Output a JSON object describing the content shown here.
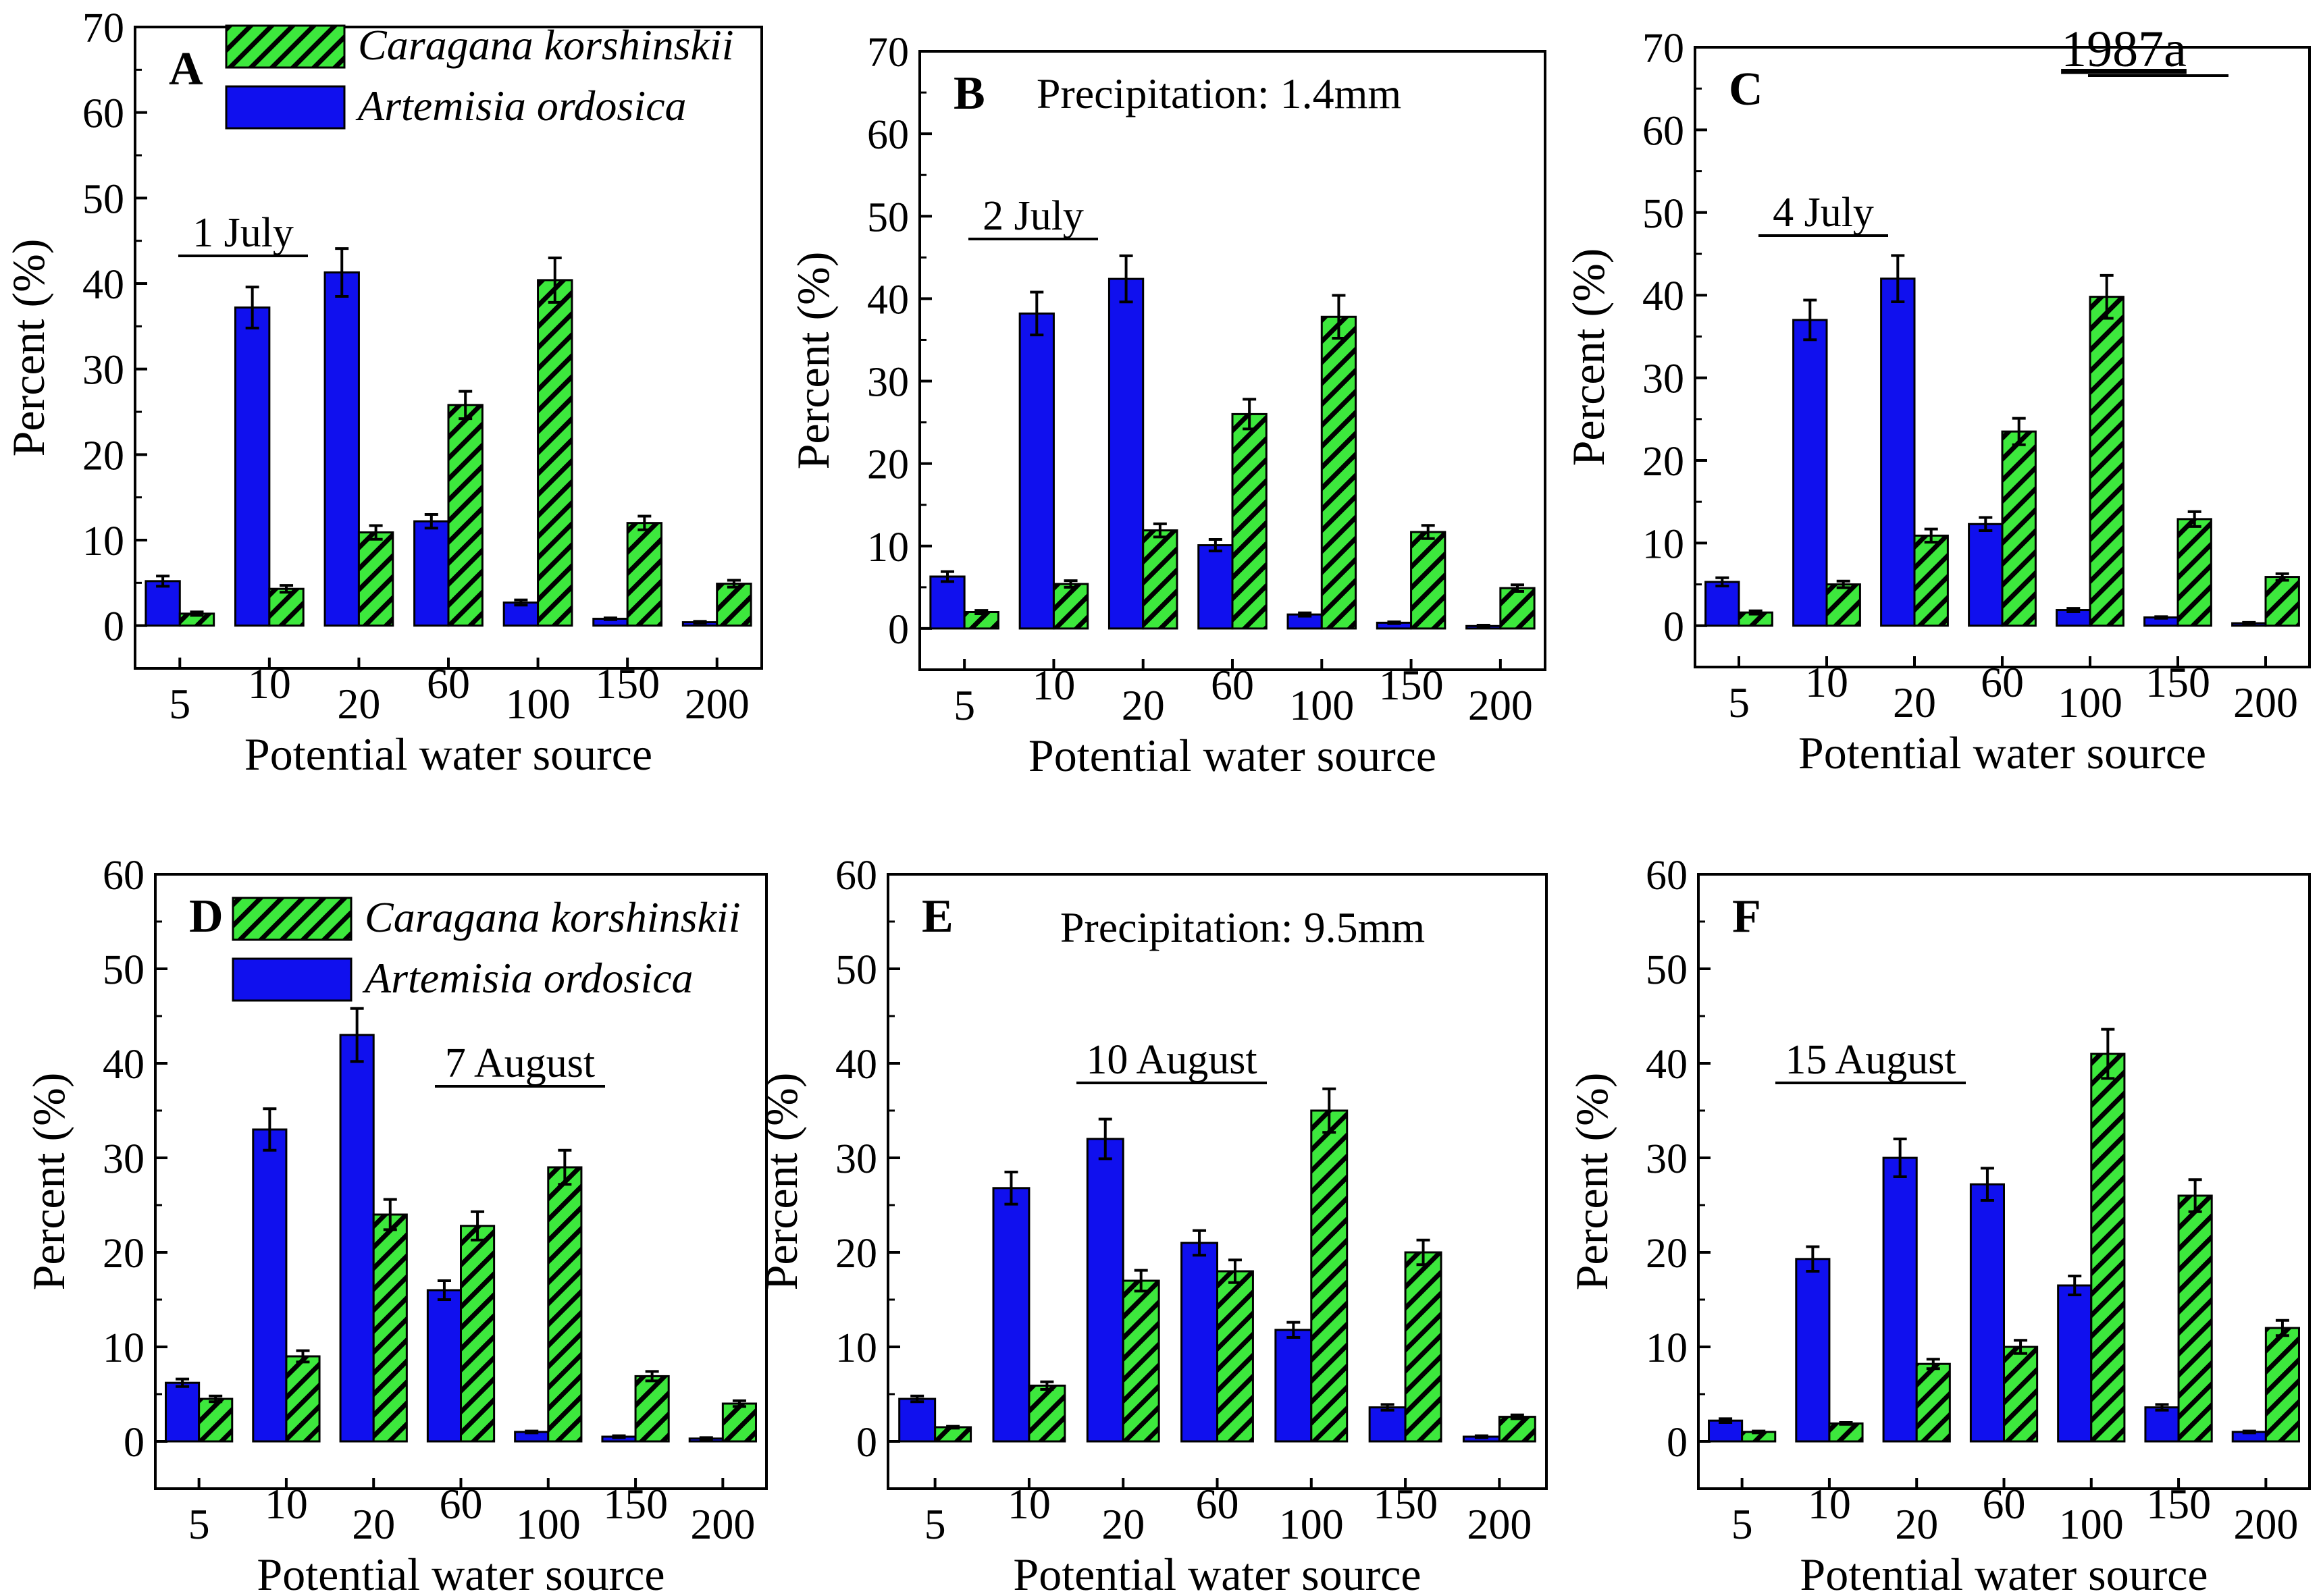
{
  "figure_note": "1987a",
  "legend": {
    "series_a_name": "Caragana korshinskii",
    "series_b_name": "Artemisia ordosica"
  },
  "colors": {
    "caragana": "#3de83d",
    "caragana_hatch": "#000000",
    "artemisia": "#1010ee"
  },
  "chart_data": [
    {
      "type": "bar",
      "panel": "A",
      "date_label": "1 July",
      "annotation": "",
      "xlabel": "Potential water source",
      "ylabel": "Percent (%)",
      "ylim": [
        -5,
        70
      ],
      "yticks": [
        0,
        10,
        20,
        30,
        40,
        50,
        60,
        70
      ],
      "categories": [
        "5",
        "10",
        "20",
        "60",
        "100",
        "150",
        "200"
      ],
      "series": [
        {
          "name": "Artemisia ordosica",
          "values": [
            5.2,
            37.2,
            41.3,
            12.2,
            2.7,
            0.8,
            0.4
          ],
          "errors": [
            0.6,
            2.4,
            2.8,
            0.8,
            0.3,
            0.1,
            0.1
          ]
        },
        {
          "name": "Caragana korshinskii",
          "values": [
            1.4,
            4.3,
            10.9,
            25.8,
            40.4,
            12.0,
            4.9
          ],
          "errors": [
            0.2,
            0.4,
            0.8,
            1.6,
            2.6,
            0.8,
            0.4
          ]
        }
      ]
    },
    {
      "type": "bar",
      "panel": "B",
      "date_label": "2 July",
      "annotation": "Precipitation: 1.4mm",
      "xlabel": "Potential water source",
      "ylabel": "Percent (%)",
      "ylim": [
        -5,
        70
      ],
      "yticks": [
        0,
        10,
        20,
        30,
        40,
        50,
        60,
        70
      ],
      "categories": [
        "5",
        "10",
        "20",
        "60",
        "100",
        "150",
        "200"
      ],
      "series": [
        {
          "name": "Artemisia ordosica",
          "values": [
            6.3,
            38.2,
            42.4,
            10.1,
            1.7,
            0.7,
            0.3
          ],
          "errors": [
            0.6,
            2.6,
            2.8,
            0.7,
            0.2,
            0.1,
            0.1
          ]
        },
        {
          "name": "Caragana korshinskii",
          "values": [
            2.0,
            5.4,
            11.9,
            26.0,
            37.8,
            11.7,
            4.9
          ],
          "errors": [
            0.2,
            0.4,
            0.8,
            1.8,
            2.6,
            0.8,
            0.4
          ]
        }
      ]
    },
    {
      "type": "bar",
      "panel": "C",
      "date_label": "4 July",
      "annotation": "",
      "xlabel": "Potential water source",
      "ylabel": "Percent (%)",
      "ylim": [
        -5,
        70
      ],
      "yticks": [
        0,
        10,
        20,
        30,
        40,
        50,
        60,
        70
      ],
      "categories": [
        "5",
        "10",
        "20",
        "60",
        "100",
        "150",
        "200"
      ],
      "series": [
        {
          "name": "Artemisia ordosica",
          "values": [
            5.3,
            37.0,
            42.0,
            12.3,
            1.9,
            1.0,
            0.3
          ],
          "errors": [
            0.5,
            2.4,
            2.8,
            0.8,
            0.2,
            0.1,
            0.1
          ]
        },
        {
          "name": "Caragana korshinskii",
          "values": [
            1.6,
            5.0,
            10.9,
            23.5,
            39.8,
            12.9,
            5.9
          ],
          "errors": [
            0.2,
            0.4,
            0.8,
            1.6,
            2.6,
            0.9,
            0.4
          ]
        }
      ]
    },
    {
      "type": "bar",
      "panel": "D",
      "date_label": "7 August",
      "annotation": "",
      "xlabel": "Potential water source",
      "ylabel": "Percent (%)",
      "ylim": [
        -5,
        60
      ],
      "yticks": [
        0,
        10,
        20,
        30,
        40,
        50,
        60
      ],
      "categories": [
        "5",
        "10",
        "20",
        "60",
        "100",
        "150",
        "200"
      ],
      "series": [
        {
          "name": "Artemisia ordosica",
          "values": [
            6.2,
            33.0,
            43.0,
            16.0,
            1.0,
            0.5,
            0.3
          ],
          "errors": [
            0.4,
            2.2,
            2.8,
            1.0,
            0.1,
            0.1,
            0.1
          ]
        },
        {
          "name": "Caragana korshinskii",
          "values": [
            4.5,
            9.0,
            24.0,
            22.8,
            29.0,
            6.9,
            4.0
          ],
          "errors": [
            0.3,
            0.6,
            1.6,
            1.5,
            1.8,
            0.5,
            0.3
          ]
        }
      ]
    },
    {
      "type": "bar",
      "panel": "E",
      "date_label": "10 August",
      "annotation": "Precipitation: 9.5mm",
      "xlabel": "Potential water source",
      "ylabel": "Percent (%)",
      "ylim": [
        -5,
        60
      ],
      "yticks": [
        0,
        10,
        20,
        30,
        40,
        50,
        60
      ],
      "categories": [
        "5",
        "10",
        "20",
        "60",
        "100",
        "150",
        "200"
      ],
      "series": [
        {
          "name": "Artemisia ordosica",
          "values": [
            4.5,
            26.8,
            32.0,
            21.0,
            11.8,
            3.6,
            0.5
          ],
          "errors": [
            0.3,
            1.7,
            2.1,
            1.3,
            0.8,
            0.3,
            0.1
          ]
        },
        {
          "name": "Caragana korshinskii",
          "values": [
            1.5,
            5.9,
            17.0,
            18.0,
            35.0,
            20.0,
            2.6
          ],
          "errors": [
            0.1,
            0.4,
            1.1,
            1.2,
            2.3,
            1.3,
            0.2
          ]
        }
      ]
    },
    {
      "type": "bar",
      "panel": "F",
      "date_label": "15 August",
      "annotation": "",
      "xlabel": "Potential water source",
      "ylabel": "Percent (%)",
      "ylim": [
        -5,
        60
      ],
      "yticks": [
        0,
        10,
        20,
        30,
        40,
        50,
        60
      ],
      "categories": [
        "5",
        "10",
        "20",
        "60",
        "100",
        "150",
        "200"
      ],
      "series": [
        {
          "name": "Artemisia ordosica",
          "values": [
            2.2,
            19.3,
            30.0,
            27.2,
            16.5,
            3.6,
            1.0
          ],
          "errors": [
            0.2,
            1.3,
            2.0,
            1.7,
            1.0,
            0.3,
            0.1
          ]
        },
        {
          "name": "Caragana korshinskii",
          "values": [
            1.0,
            1.9,
            8.2,
            10.0,
            41.0,
            26.0,
            12.0
          ],
          "errors": [
            0.1,
            0.1,
            0.5,
            0.7,
            2.6,
            1.7,
            0.8
          ]
        }
      ]
    }
  ]
}
